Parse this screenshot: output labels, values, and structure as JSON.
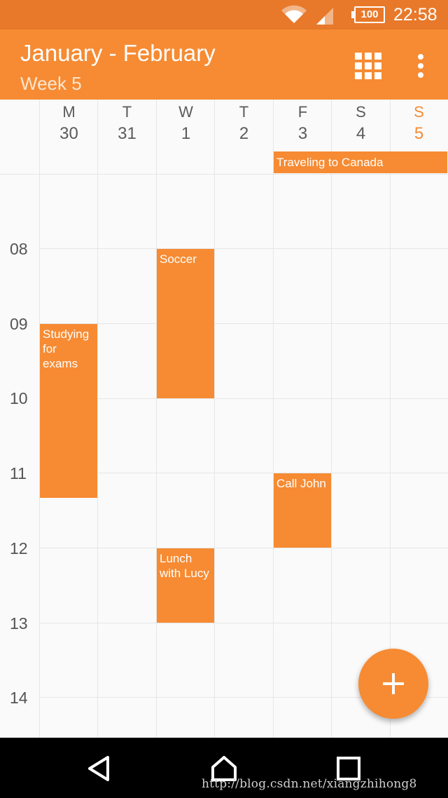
{
  "status_bar": {
    "battery_level": "100",
    "time": "22:58",
    "icons": [
      "wifi-icon",
      "cell-signal-icon",
      "battery-icon"
    ]
  },
  "app_bar": {
    "title": "January - February",
    "subtitle": "Week 5",
    "icons": [
      "grid-view-icon",
      "more-vert-icon"
    ]
  },
  "week": {
    "days": [
      {
        "weekday": "M",
        "date": "30",
        "today": false
      },
      {
        "weekday": "T",
        "date": "31",
        "today": false
      },
      {
        "weekday": "W",
        "date": "1",
        "today": false
      },
      {
        "weekday": "T",
        "date": "2",
        "today": false
      },
      {
        "weekday": "F",
        "date": "3",
        "today": false
      },
      {
        "weekday": "S",
        "date": "4",
        "today": false
      },
      {
        "weekday": "S",
        "date": "5",
        "today": true
      }
    ],
    "hours": [
      "08",
      "09",
      "10",
      "11",
      "12",
      "13",
      "14"
    ]
  },
  "events": {
    "all_day": {
      "title": "Traveling to Canada",
      "days": [
        "F",
        "S",
        "S"
      ]
    },
    "timed": [
      {
        "title": "Soccer",
        "day": "W 1",
        "start": "08:00",
        "end": "10:00"
      },
      {
        "title": "Studying for exams",
        "day": "M 30",
        "start": "09:00",
        "end": "11:20"
      },
      {
        "title": "Call John",
        "day": "F 3",
        "start": "11:00",
        "end": "12:00"
      },
      {
        "title": "Lunch with Lucy",
        "day": "W 1",
        "start": "12:00",
        "end": "13:00"
      }
    ]
  },
  "fab": {
    "icon": "plus-icon"
  },
  "nav_bar": {
    "icons": [
      "back-icon",
      "home-icon",
      "recents-icon"
    ],
    "watermark": "http://blog.csdn.net/xiangzhihong8"
  },
  "colors": {
    "status_bar": "#e8792a",
    "primary": "#f68b33",
    "background": "#fafafa",
    "grid_line": "#e6e6e6",
    "navigation": "#000000"
  }
}
